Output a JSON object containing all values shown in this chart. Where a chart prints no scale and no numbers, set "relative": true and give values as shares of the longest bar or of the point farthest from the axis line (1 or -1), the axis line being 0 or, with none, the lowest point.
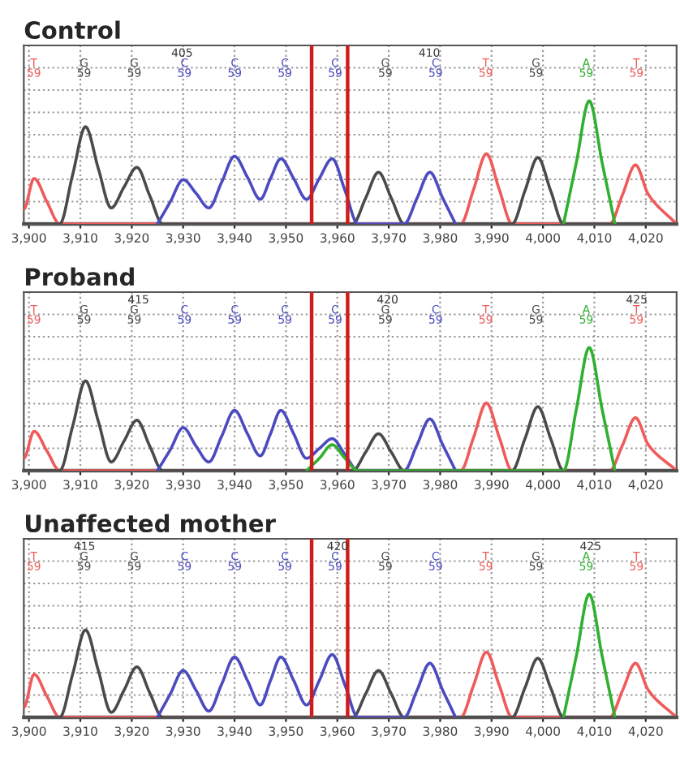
{
  "chart_data": [
    {
      "type": "line",
      "title": "Control",
      "relative": true,
      "grid": true,
      "legend": false,
      "xlim": [
        3899,
        4026
      ],
      "xticks": [
        {
          "value": 3900,
          "label": "3,900"
        },
        {
          "value": 3910,
          "label": "3,910"
        },
        {
          "value": 3920,
          "label": "3,920"
        },
        {
          "value": 3930,
          "label": "3,930"
        },
        {
          "value": 3940,
          "label": "3,940"
        },
        {
          "value": 3950,
          "label": "3,950"
        },
        {
          "value": 3960,
          "label": "3,960"
        },
        {
          "value": 3970,
          "label": "3,970"
        },
        {
          "value": 3980,
          "label": "3,980"
        },
        {
          "value": 3990,
          "label": "3,990"
        },
        {
          "value": 4000,
          "label": "4,000"
        },
        {
          "value": 4010,
          "label": "4,010"
        },
        {
          "value": 4020,
          "label": "4,020"
        }
      ],
      "x2lim": [
        401.8,
        415.0
      ],
      "x2ticks": [
        405,
        410
      ],
      "annotations": [
        "T\n59",
        "G\n59",
        "G\n59",
        "C\n59",
        "C\n59",
        "C\n59",
        "C\n59",
        "G\n59",
        "C\n59",
        "T\n59",
        "G\n59",
        "A\n59",
        "T\n59"
      ],
      "ref_lines": [
        {
          "axis": "x",
          "value": 3955,
          "color": "#d01c1c"
        },
        {
          "axis": "x",
          "value": 3962,
          "color": "#d01c1c"
        }
      ],
      "series": [
        {
          "color": "#f05a5a",
          "x": [
            3899,
            3901,
            3903.5,
            3906,
            3984,
            3986.5,
            3989,
            3991.5,
            3994,
            4013,
            4015.5,
            4018,
            4020.5,
            4026
          ],
          "values": [
            0.12,
            0.37,
            0.18,
            0,
            0,
            0.28,
            0.57,
            0.28,
            0,
            0,
            0.24,
            0.48,
            0.24,
            0
          ]
        },
        {
          "color": "#4a4a4a",
          "x": [
            3899,
            3906,
            3908.5,
            3911,
            3913.5,
            3916,
            3918.5,
            3921,
            3923.5,
            3926,
            3963,
            3965.5,
            3968,
            3970.5,
            3973,
            3994,
            3996.5,
            3999,
            4001.5,
            4004,
            4026
          ],
          "values": [
            0,
            0,
            0.4,
            0.79,
            0.45,
            0.13,
            0.3,
            0.46,
            0.23,
            0,
            0,
            0.21,
            0.42,
            0.21,
            0,
            0,
            0.27,
            0.54,
            0.27,
            0,
            0
          ]
        },
        {
          "color": "#4b4bc0",
          "x": [
            3925,
            3927.5,
            3930,
            3932.5,
            3935,
            3937.5,
            3940,
            3942.5,
            3945,
            3947,
            3949,
            3951.5,
            3954,
            3956.5,
            3959,
            3961.5,
            3964,
            3973,
            3975.5,
            3978,
            3980.5,
            3983
          ],
          "values": [
            0,
            0.18,
            0.36,
            0.25,
            0.13,
            0.34,
            0.55,
            0.38,
            0.2,
            0.37,
            0.53,
            0.37,
            0.2,
            0.37,
            0.53,
            0.27,
            0,
            0,
            0.21,
            0.42,
            0.21,
            0
          ]
        },
        {
          "color": "#2fb02f",
          "x": [
            4004,
            4006.5,
            4009,
            4011.5,
            4014
          ],
          "values": [
            0,
            0.5,
            1,
            0.5,
            0
          ]
        }
      ]
    },
    {
      "type": "line",
      "title": "Proband",
      "relative": true,
      "grid": true,
      "legend": false,
      "xlim": [
        3899,
        4026
      ],
      "xticks": [
        {
          "value": 3900,
          "label": "3,900"
        },
        {
          "value": 3910,
          "label": "3,910"
        },
        {
          "value": 3920,
          "label": "3,920"
        },
        {
          "value": 3930,
          "label": "3,930"
        },
        {
          "value": 3940,
          "label": "3,940"
        },
        {
          "value": 3950,
          "label": "3,950"
        },
        {
          "value": 3960,
          "label": "3,960"
        },
        {
          "value": 3970,
          "label": "3,970"
        },
        {
          "value": 3980,
          "label": "3,980"
        },
        {
          "value": 3990,
          "label": "3,990"
        },
        {
          "value": 4000,
          "label": "4,000"
        },
        {
          "value": 4010,
          "label": "4,010"
        },
        {
          "value": 4020,
          "label": "4,020"
        }
      ],
      "x2lim": [
        412.7,
        425.8
      ],
      "x2ticks": [
        415,
        420,
        425
      ],
      "annotations": [
        "T\n59",
        "G\n59",
        "G\n59",
        "C\n59",
        "C\n59",
        "C\n59",
        "C\n59",
        "G\n59",
        "C\n59",
        "T\n59",
        "G\n59",
        "A\n59",
        "T\n59"
      ],
      "ref_lines": [
        {
          "axis": "x",
          "value": 3955,
          "color": "#d01c1c"
        },
        {
          "axis": "x",
          "value": 3962,
          "color": "#d01c1c"
        }
      ],
      "series": [
        {
          "color": "#f05a5a",
          "x": [
            3899,
            3901,
            3903.5,
            3906,
            3984,
            3986.5,
            3989,
            3991.5,
            3994,
            4013,
            4015.5,
            4018,
            4020.5,
            4026
          ],
          "values": [
            0.1,
            0.32,
            0.16,
            0,
            0,
            0.27,
            0.55,
            0.27,
            0,
            0,
            0.21,
            0.43,
            0.21,
            0
          ]
        },
        {
          "color": "#4a4a4a",
          "x": [
            3899,
            3906,
            3908.5,
            3911,
            3913.5,
            3916,
            3918.5,
            3921,
            3923.5,
            3926,
            3963,
            3965.5,
            3968,
            3970.5,
            3973,
            3994,
            3996.5,
            3999,
            4001.5,
            4004,
            4026
          ],
          "values": [
            0,
            0,
            0.36,
            0.73,
            0.4,
            0.07,
            0.24,
            0.41,
            0.2,
            0,
            0,
            0.15,
            0.3,
            0.15,
            0,
            0,
            0.26,
            0.52,
            0.26,
            0,
            0
          ]
        },
        {
          "color": "#4b4bc0",
          "x": [
            3925,
            3927.5,
            3930,
            3932.5,
            3935,
            3937.5,
            3940,
            3942.5,
            3945,
            3947,
            3949,
            3951.5,
            3954,
            3956.5,
            3959,
            3961.5,
            3964,
            3973,
            3975.5,
            3978,
            3980.5,
            3983
          ],
          "values": [
            0,
            0.17,
            0.35,
            0.2,
            0.07,
            0.28,
            0.49,
            0.3,
            0.12,
            0.3,
            0.49,
            0.3,
            0.1,
            0.18,
            0.26,
            0.13,
            0,
            0,
            0.21,
            0.42,
            0.21,
            0
          ]
        },
        {
          "color": "#2fb02f",
          "x": [
            3954,
            3956.5,
            3959,
            3961.5,
            3964,
            4004,
            4006.5,
            4009,
            4011.5,
            4014
          ],
          "values": [
            0,
            0.1,
            0.21,
            0.1,
            0,
            0,
            0.5,
            1,
            0.5,
            0
          ]
        }
      ]
    },
    {
      "type": "line",
      "title": "Unaffected mother",
      "relative": true,
      "grid": true,
      "legend": false,
      "xlim": [
        3899,
        4026
      ],
      "xticks": [
        {
          "value": 3900,
          "label": "3,900"
        },
        {
          "value": 3910,
          "label": "3,910"
        },
        {
          "value": 3920,
          "label": "3,920"
        },
        {
          "value": 3930,
          "label": "3,930"
        },
        {
          "value": 3940,
          "label": "3,940"
        },
        {
          "value": 3950,
          "label": "3,950"
        },
        {
          "value": 3960,
          "label": "3,960"
        },
        {
          "value": 3970,
          "label": "3,970"
        },
        {
          "value": 3980,
          "label": "3,980"
        },
        {
          "value": 3990,
          "label": "3,990"
        },
        {
          "value": 4000,
          "label": "4,000"
        },
        {
          "value": 4010,
          "label": "4,010"
        },
        {
          "value": 4020,
          "label": "4,020"
        }
      ],
      "x2lim": [
        413.8,
        426.7
      ],
      "x2ticks": [
        415,
        420,
        425
      ],
      "annotations": [
        "T\n59",
        "G\n59",
        "G\n59",
        "C\n59",
        "C\n59",
        "C\n59",
        "C\n59",
        "G\n59",
        "C\n59",
        "T\n59",
        "G\n59",
        "A\n59",
        "T\n59"
      ],
      "ref_lines": [
        {
          "axis": "x",
          "value": 3955,
          "color": "#d01c1c"
        },
        {
          "axis": "x",
          "value": 3962,
          "color": "#d01c1c"
        }
      ],
      "series": [
        {
          "color": "#f05a5a",
          "x": [
            3899,
            3901,
            3903.5,
            3906,
            3984,
            3986.5,
            3989,
            3991.5,
            3994,
            4013,
            4015.5,
            4018,
            4020.5,
            4026
          ],
          "values": [
            0.08,
            0.35,
            0.17,
            0,
            0,
            0.26,
            0.53,
            0.26,
            0,
            0,
            0.22,
            0.44,
            0.22,
            0
          ]
        },
        {
          "color": "#4a4a4a",
          "x": [
            3899,
            3906,
            3908.5,
            3911,
            3913.5,
            3916,
            3918.5,
            3921,
            3923.5,
            3926,
            3963,
            3965.5,
            3968,
            3970.5,
            3973,
            3994,
            3996.5,
            3999,
            4001.5,
            4004,
            4026
          ],
          "values": [
            0,
            0,
            0.35,
            0.71,
            0.38,
            0.04,
            0.22,
            0.41,
            0.2,
            0,
            0,
            0.19,
            0.38,
            0.19,
            0,
            0,
            0.24,
            0.48,
            0.24,
            0,
            0
          ]
        },
        {
          "color": "#4b4bc0",
          "x": [
            3925,
            3927.5,
            3930,
            3932.5,
            3935,
            3937.5,
            3940,
            3942.5,
            3945,
            3947,
            3949,
            3951.5,
            3954,
            3956.5,
            3959,
            3961.5,
            3964,
            3973,
            3975.5,
            3978,
            3980.5,
            3983
          ],
          "values": [
            0,
            0.19,
            0.38,
            0.22,
            0.05,
            0.27,
            0.49,
            0.3,
            0.1,
            0.3,
            0.49,
            0.3,
            0.1,
            0.3,
            0.51,
            0.26,
            0,
            0,
            0.22,
            0.44,
            0.22,
            0
          ]
        },
        {
          "color": "#2fb02f",
          "x": [
            4004,
            4006.5,
            4009,
            4011.5,
            4014
          ],
          "values": [
            0,
            0.5,
            1,
            0.5,
            0
          ]
        }
      ]
    }
  ]
}
